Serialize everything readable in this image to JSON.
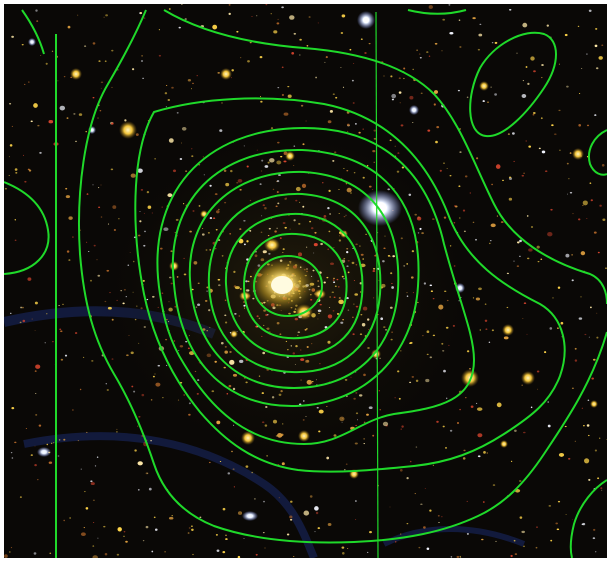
{
  "image": {
    "subject": "galaxy-cluster-field",
    "colors": {
      "background_sky": "#0a0806",
      "contour": "#1fd92a",
      "core_glow": "#fff1a0",
      "galaxy_yellow": "#ffd54a",
      "galaxy_red": "#d8452e",
      "star_white": "#f4f6ff",
      "dust_blue": "#1a2a6a"
    },
    "contour_levels": 9
  }
}
